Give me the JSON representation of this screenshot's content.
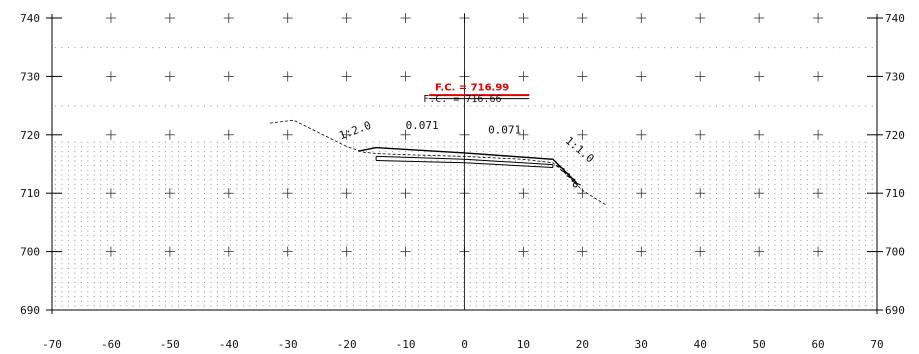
{
  "x_axis": {
    "min": -70,
    "max": 70,
    "step": 10,
    "labels": [
      "-70",
      "-60",
      "-50",
      "-40",
      "-30",
      "-20",
      "-10",
      "0",
      "10",
      "20",
      "30",
      "40",
      "50",
      "60",
      "70"
    ]
  },
  "y_axis": {
    "min": 690,
    "max": 740,
    "step": 10,
    "labels_left": [
      "740",
      "730",
      "720",
      "710",
      "700",
      "690"
    ],
    "labels_right": [
      "740",
      "730",
      "720",
      "710",
      "700",
      "690"
    ]
  },
  "annotations": {
    "fc_proposed": "F.C. = 716.99",
    "fc_existing": "F.C. = 716.66",
    "slope_left": "1:2.0",
    "cross_slope_left": "0.071",
    "cross_slope_right": "0.071",
    "slope_right": "1:1.0"
  },
  "geometry": {
    "existing_ground": [
      [
        -33,
        722
      ],
      [
        -29,
        722.5
      ],
      [
        -25,
        720.5
      ],
      [
        -20,
        718
      ],
      [
        -17,
        717
      ],
      [
        -15,
        716.8
      ],
      [
        -10,
        716.6
      ],
      [
        0,
        716.3
      ],
      [
        10,
        715.8
      ],
      [
        15,
        715.2
      ],
      [
        17,
        713.5
      ],
      [
        20,
        710.5
      ],
      [
        24,
        708
      ]
    ],
    "proposed_top": [
      [
        -18,
        717.2
      ],
      [
        -15,
        717.8
      ],
      [
        0,
        716.9
      ],
      [
        15,
        715.8
      ],
      [
        18,
        712.8
      ],
      [
        19,
        711.8
      ]
    ],
    "pavement_top": [
      [
        -15,
        716.3
      ],
      [
        0,
        715.8
      ],
      [
        15,
        714.9
      ]
    ],
    "pavement_bottom": [
      [
        -15,
        715.6
      ],
      [
        0,
        715.2
      ],
      [
        15,
        714.4
      ]
    ],
    "pavement_left_x": -15,
    "pavement_right_x": 15,
    "fc_proposed_line": [
      [
        -6,
        726.8
      ],
      [
        11,
        726.8
      ]
    ],
    "fc_existing_line": [
      [
        -6,
        726.2
      ],
      [
        11,
        726.2
      ]
    ]
  },
  "colors": {
    "grid": "#333333",
    "red": "#e00000",
    "line": "#000000"
  }
}
